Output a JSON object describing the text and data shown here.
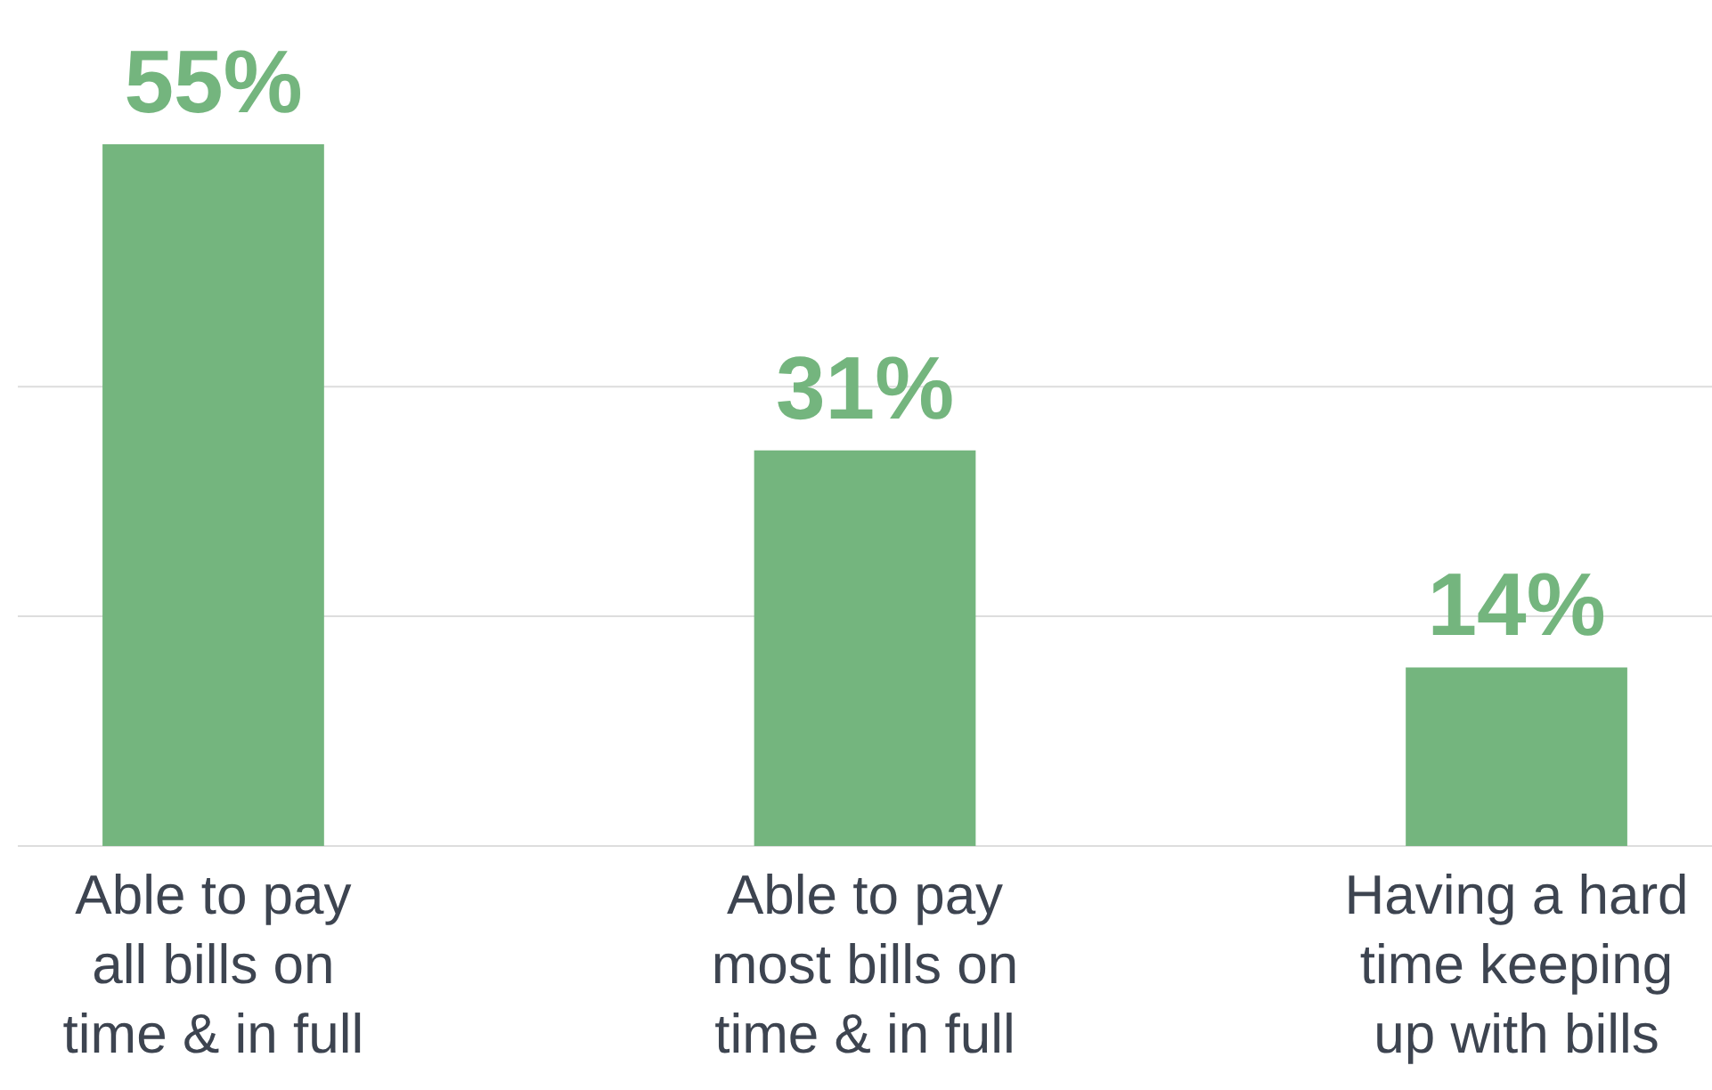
{
  "chart_data": {
    "type": "bar",
    "categories": [
      "Able to pay\nall bills on\ntime & in full",
      "Able to pay\nmost bills on\ntime & in full",
      "Having a hard\ntime keeping\nup with bills"
    ],
    "values": [
      55,
      31,
      14
    ],
    "color": "#74b57e",
    "value_labels": [
      "55%",
      "31%",
      "14%"
    ],
    "ref_lines": [
      {
        "axis": "y",
        "value": 0,
        "color": "#dddddd"
      },
      {
        "axis": "y",
        "value": 18,
        "color": "#dddddd"
      },
      {
        "axis": "y",
        "value": 36,
        "color": "#dddddd"
      }
    ],
    "tick_labels": "x"
  }
}
